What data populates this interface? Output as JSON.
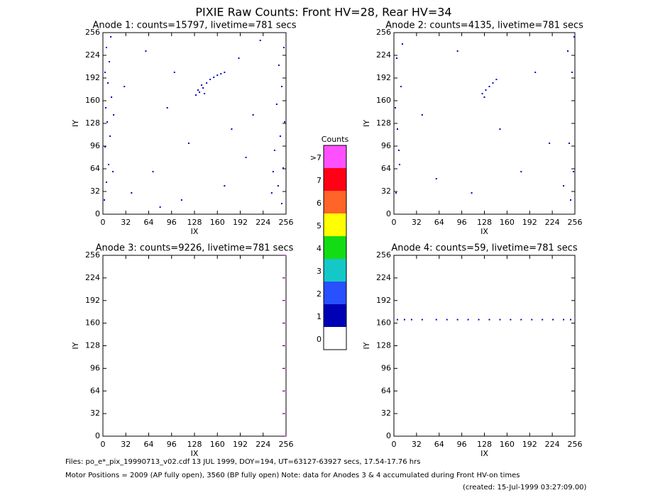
{
  "title": "PIXIE Raw Counts:  Front HV=28, Rear HV=34",
  "footer": [
    "Files: po_e*_pix_19990713_v02.cdf    13 JUL 1999, DOY=194, UT=63127-63927 secs, 17.54-17.76 hrs",
    "Motor Positions = 2009 (AP fully open), 3560 (BP fully open)    Note: data for Anodes 3 & 4 accumulated during Front HV-on times",
    "(created: 15-Jul-1999 03:27:09.00)"
  ],
  "chart_data": [
    {
      "type": "scatter",
      "title": "Anode 1: counts=15797, livetime=781 secs",
      "xlabel": "IX",
      "ylabel": "IY",
      "xlim": [
        0,
        256
      ],
      "ylim": [
        0,
        256
      ],
      "xticks": [
        0,
        32,
        64,
        96,
        128,
        160,
        192,
        224,
        256
      ],
      "yticks": [
        0,
        32,
        64,
        96,
        128,
        160,
        192,
        224,
        256
      ],
      "color": "#0000c8",
      "x": [
        2,
        5,
        8,
        3,
        10,
        6,
        4,
        12,
        7,
        3,
        9,
        5,
        11,
        14,
        15,
        250,
        245,
        252,
        240,
        248,
        254,
        243,
        250,
        246,
        253,
        238,
        236,
        130,
        135,
        140,
        138,
        145,
        150,
        155,
        160,
        165,
        170,
        133,
        142,
        40,
        70,
        100,
        60,
        190,
        200,
        120,
        90,
        170,
        210,
        30,
        180,
        110,
        220,
        80
      ],
      "y": [
        20,
        45,
        70,
        95,
        110,
        130,
        150,
        165,
        185,
        200,
        215,
        235,
        250,
        60,
        140,
        15,
        40,
        65,
        90,
        110,
        130,
        155,
        180,
        210,
        235,
        60,
        30,
        168,
        172,
        178,
        182,
        185,
        190,
        193,
        196,
        198,
        200,
        175,
        170,
        30,
        60,
        200,
        230,
        220,
        80,
        100,
        150,
        40,
        140,
        180,
        120,
        20,
        245,
        10
      ]
    },
    {
      "type": "scatter",
      "title": "Anode 2: counts=4135, livetime=781 secs",
      "xlabel": "IX",
      "ylabel": "IY",
      "xlim": [
        0,
        256
      ],
      "ylim": [
        0,
        256
      ],
      "xticks": [
        0,
        32,
        64,
        96,
        128,
        160,
        192,
        224,
        256
      ],
      "yticks": [
        0,
        32,
        64,
        96,
        128,
        160,
        192,
        224,
        256
      ],
      "color": "#0000c8",
      "x": [
        3,
        8,
        5,
        10,
        4,
        12,
        7,
        2,
        250,
        254,
        248,
        252,
        246,
        255,
        240,
        125,
        130,
        135,
        140,
        145,
        128,
        60,
        150,
        200,
        90,
        180,
        40,
        220,
        110
      ],
      "y": [
        30,
        70,
        120,
        180,
        220,
        240,
        90,
        150,
        20,
        60,
        100,
        200,
        230,
        250,
        40,
        170,
        175,
        180,
        185,
        190,
        165,
        50,
        120,
        200,
        230,
        60,
        140,
        100,
        30
      ]
    },
    {
      "type": "scatter",
      "title": "Anode 3: counts=9226, livetime=781 secs",
      "xlabel": "IX",
      "ylabel": "IY",
      "xlim": [
        0,
        256
      ],
      "ylim": [
        0,
        256
      ],
      "xticks": [
        0,
        32,
        64,
        96,
        128,
        160,
        192,
        224,
        256
      ],
      "yticks": [
        0,
        32,
        64,
        96,
        128,
        160,
        192,
        224,
        256
      ],
      "color": "#ff40ff",
      "x": [
        255,
        255,
        255,
        255,
        255,
        255,
        255,
        255,
        255
      ],
      "y": [
        0,
        32,
        64,
        96,
        128,
        160,
        192,
        224,
        256
      ]
    },
    {
      "type": "scatter",
      "title": "Anode 4: counts=59, livetime=781 secs",
      "xlabel": "IX",
      "ylabel": "IY",
      "xlim": [
        0,
        256
      ],
      "ylim": [
        0,
        256
      ],
      "xticks": [
        0,
        32,
        64,
        96,
        128,
        160,
        192,
        224,
        256
      ],
      "yticks": [
        0,
        32,
        64,
        96,
        128,
        160,
        192,
        224,
        256
      ],
      "color": "#0000c8",
      "x": [
        5,
        15,
        25,
        40,
        60,
        75,
        90,
        105,
        120,
        135,
        150,
        165,
        180,
        195,
        210,
        225,
        240,
        250
      ],
      "y": [
        165,
        165,
        165,
        165,
        165,
        165,
        165,
        165,
        165,
        165,
        165,
        165,
        165,
        165,
        165,
        165,
        165,
        165
      ]
    },
    {
      "type": "colorbar",
      "title": "Counts",
      "categories": [
        "0",
        "1",
        "2",
        "3",
        "4",
        "5",
        "6",
        "7",
        ">7"
      ],
      "colors": [
        "#ffffff",
        "#0000b4",
        "#2850ff",
        "#14c8c8",
        "#14dc14",
        "#ffff00",
        "#ff6428",
        "#ff0014",
        "#ff50ff"
      ]
    }
  ]
}
